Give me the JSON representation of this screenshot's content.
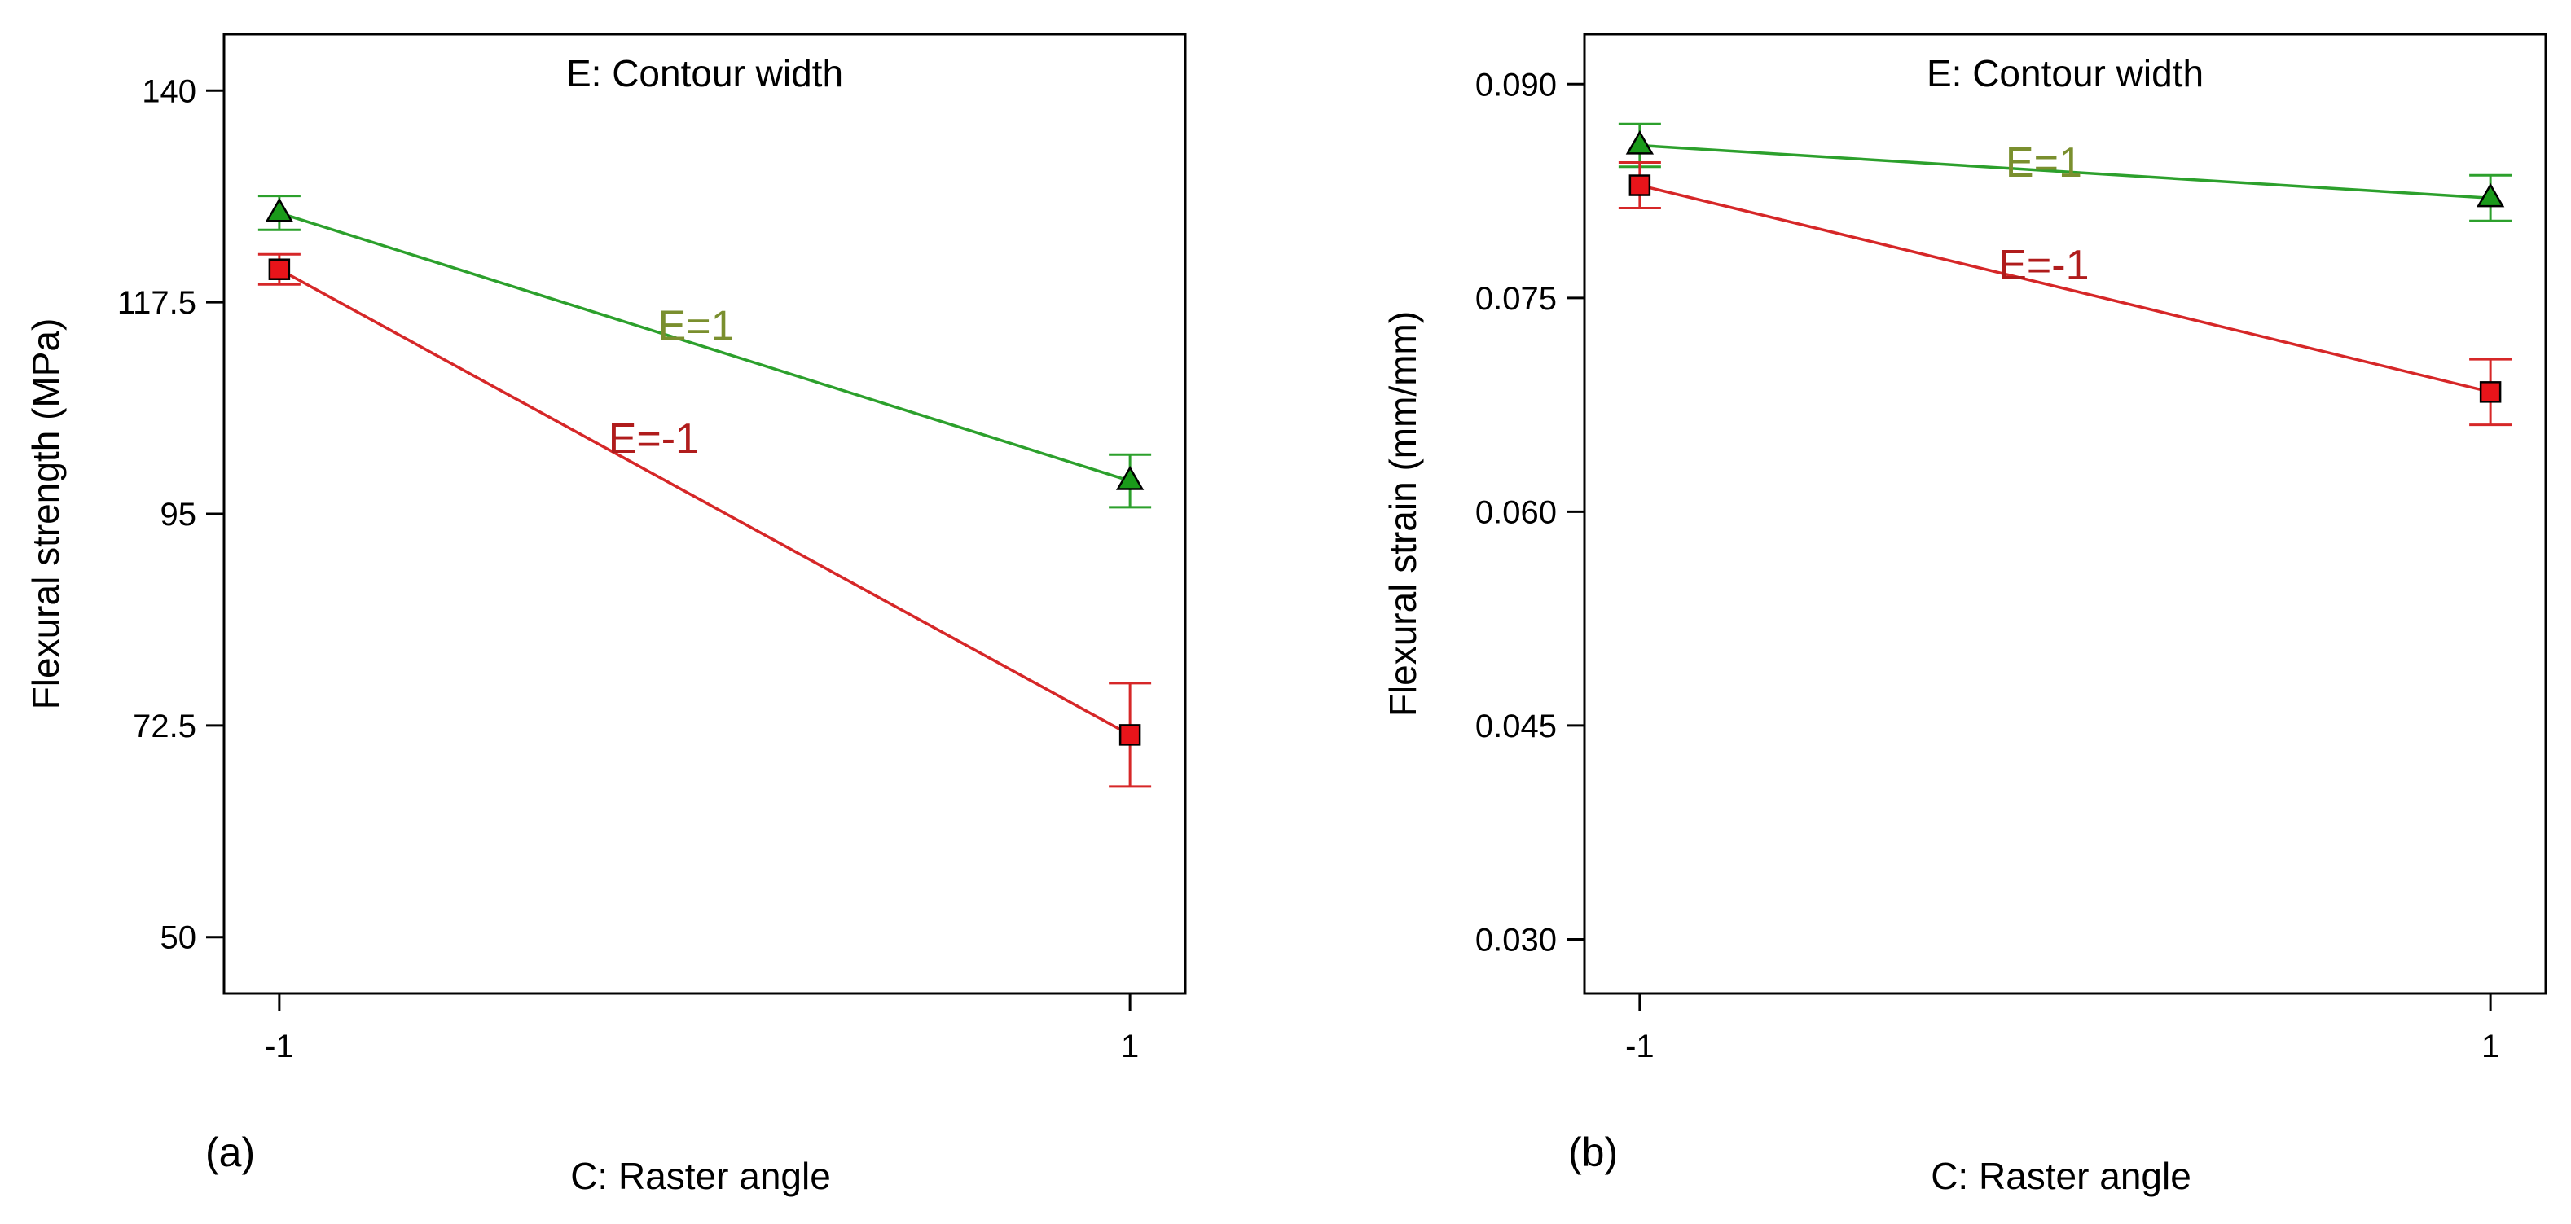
{
  "chart_data": [
    {
      "type": "line",
      "panel_label": "(a)",
      "title": "E: Contour width",
      "xlabel": "C: Raster angle",
      "ylabel": "Flexural strength (MPa)",
      "x": [
        -1,
        1
      ],
      "x_tick_labels": [
        "-1",
        "1"
      ],
      "xlim": [
        -1.13,
        1.13
      ],
      "ylim": [
        44,
        146
      ],
      "y_ticks": [
        50,
        72.5,
        95,
        117.5,
        140
      ],
      "y_tick_labels": [
        "50",
        "72.5",
        "95",
        "117.5",
        "140"
      ],
      "series": [
        {
          "name": "E=1",
          "label": "E=1",
          "color": "#2ca02c",
          "label_color": "#7a8f2e",
          "marker": "triangle",
          "values": [
            127,
            98.5
          ],
          "errors": [
            1.8,
            2.8
          ],
          "label_at": [
            -0.02,
            113.5
          ]
        },
        {
          "name": "E=-1",
          "label": "E=-1",
          "color": "#d62728",
          "label_color": "#b01c1c",
          "marker": "square",
          "values": [
            121,
            71.5
          ],
          "errors": [
            1.6,
            5.5
          ],
          "label_at": [
            -0.12,
            101.5
          ]
        }
      ]
    },
    {
      "type": "line",
      "panel_label": "(b)",
      "title": "E: Contour width",
      "xlabel": "C: Raster angle",
      "ylabel": "Flexural strain (mm/mm)",
      "x": [
        -1,
        1
      ],
      "x_tick_labels": [
        "-1",
        "1"
      ],
      "xlim": [
        -1.13,
        1.13
      ],
      "ylim": [
        0.0262,
        0.0935
      ],
      "y_ticks": [
        0.03,
        0.045,
        0.06,
        0.075,
        0.09
      ],
      "y_tick_labels": [
        "0.030",
        "0.045",
        "0.060",
        "0.075",
        "0.090"
      ],
      "series": [
        {
          "name": "E=1",
          "label": "E=1",
          "color": "#2ca02c",
          "label_color": "#7a8f2e",
          "marker": "triangle",
          "values": [
            0.0857,
            0.082
          ],
          "errors": [
            0.0015,
            0.0016
          ],
          "label_at": [
            -0.05,
            0.0835
          ]
        },
        {
          "name": "E=-1",
          "label": "E=-1",
          "color": "#d62728",
          "label_color": "#b01c1c",
          "marker": "square",
          "values": [
            0.0829,
            0.0684
          ],
          "errors": [
            0.0016,
            0.0023
          ],
          "label_at": [
            -0.05,
            0.0763
          ]
        }
      ]
    }
  ]
}
